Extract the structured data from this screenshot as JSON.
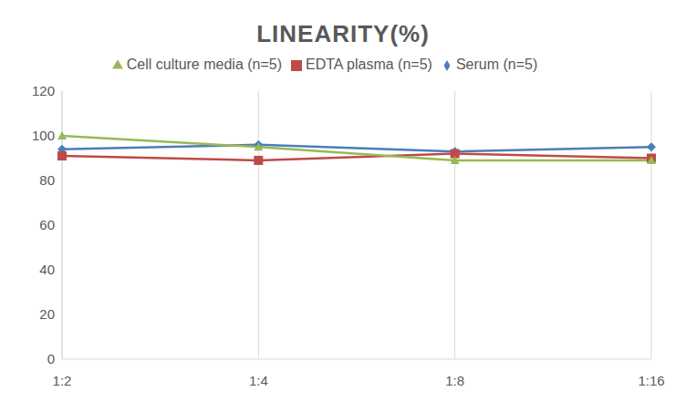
{
  "chart_data": {
    "type": "line",
    "title": "LINEARITY(%)",
    "categories": [
      "1:2",
      "1:4",
      "1:8",
      "1:16"
    ],
    "series": [
      {
        "name": "Serum (n=5)",
        "color": "#4a7ebb",
        "marker": "diamond",
        "values": [
          94,
          96,
          93,
          95
        ]
      },
      {
        "name": "EDTA plasma (n=5)",
        "color": "#be4b48",
        "marker": "square",
        "values": [
          91,
          89,
          92,
          90
        ]
      },
      {
        "name": "Cell culture media (n=5)",
        "color": "#98b954",
        "marker": "triangle",
        "values": [
          100,
          95,
          89,
          89
        ]
      }
    ],
    "ylim": [
      0,
      120
    ],
    "yticks": [
      0,
      20,
      40,
      60,
      80,
      100,
      120
    ],
    "grid": true,
    "legend": "top"
  }
}
